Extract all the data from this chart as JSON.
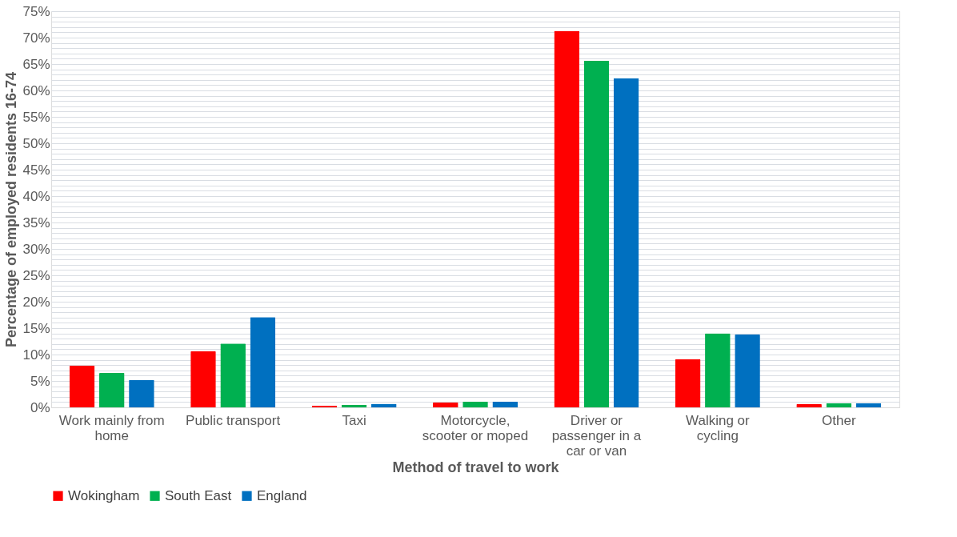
{
  "chart_data": {
    "type": "bar",
    "xlabel": "Method of travel to work",
    "ylabel": "Percentage of employed residents 16-74",
    "categories": [
      "Work mainly from home",
      "Public transport",
      "Taxi",
      "Motorcycle, scooter or moped",
      "Driver or passenger in a car or van",
      "Walking or cycling",
      "Other"
    ],
    "series": [
      {
        "name": "Wokingham",
        "color": "#ff0000",
        "values": [
          7.9,
          10.6,
          0.3,
          0.9,
          71.3,
          9.1,
          0.6
        ]
      },
      {
        "name": "South East",
        "color": "#00b050",
        "values": [
          6.5,
          12.1,
          0.5,
          1.1,
          65.6,
          14.0,
          0.8
        ]
      },
      {
        "name": "England",
        "color": "#0070c0",
        "values": [
          5.2,
          17.1,
          0.7,
          1.1,
          62.3,
          13.8,
          0.8
        ]
      }
    ],
    "ylim": [
      0,
      75
    ],
    "yticks": [
      {
        "value": 0,
        "label": "0%"
      },
      {
        "value": 1,
        "label": null
      },
      {
        "value": 2,
        "label": null
      },
      {
        "value": 3,
        "label": null
      },
      {
        "value": 4,
        "label": null
      },
      {
        "value": 5,
        "label": "5%"
      },
      {
        "value": 6,
        "label": null
      },
      {
        "value": 7,
        "label": null
      },
      {
        "value": 8,
        "label": null
      },
      {
        "value": 9,
        "label": null
      },
      {
        "value": 10,
        "label": "10%"
      },
      {
        "value": 11,
        "label": null
      },
      {
        "value": 12,
        "label": null
      },
      {
        "value": 13,
        "label": null
      },
      {
        "value": 14,
        "label": null
      },
      {
        "value": 15,
        "label": "15%"
      },
      {
        "value": 16,
        "label": null
      },
      {
        "value": 17,
        "label": null
      },
      {
        "value": 18,
        "label": null
      },
      {
        "value": 19,
        "label": null
      },
      {
        "value": 20,
        "label": "20%"
      },
      {
        "value": 21,
        "label": null
      },
      {
        "value": 22,
        "label": null
      },
      {
        "value": 23,
        "label": null
      },
      {
        "value": 24,
        "label": null
      },
      {
        "value": 25,
        "label": "25%"
      },
      {
        "value": 26,
        "label": null
      },
      {
        "value": 27,
        "label": null
      },
      {
        "value": 28,
        "label": null
      },
      {
        "value": 29,
        "label": null
      },
      {
        "value": 30,
        "label": "30%"
      },
      {
        "value": 31,
        "label": null
      },
      {
        "value": 32,
        "label": null
      },
      {
        "value": 33,
        "label": null
      },
      {
        "value": 34,
        "label": null
      },
      {
        "value": 35,
        "label": "35%"
      },
      {
        "value": 36,
        "label": null
      },
      {
        "value": 37,
        "label": null
      },
      {
        "value": 38,
        "label": null
      },
      {
        "value": 39,
        "label": null
      },
      {
        "value": 40,
        "label": "40%"
      },
      {
        "value": 41,
        "label": null
      },
      {
        "value": 42,
        "label": null
      },
      {
        "value": 43,
        "label": null
      },
      {
        "value": 44,
        "label": null
      },
      {
        "value": 45,
        "label": "45%"
      },
      {
        "value": 46,
        "label": null
      },
      {
        "value": 47,
        "label": null
      },
      {
        "value": 48,
        "label": null
      },
      {
        "value": 49,
        "label": null
      },
      {
        "value": 50,
        "label": "50%"
      },
      {
        "value": 51,
        "label": null
      },
      {
        "value": 52,
        "label": null
      },
      {
        "value": 53,
        "label": null
      },
      {
        "value": 54,
        "label": null
      },
      {
        "value": 55,
        "label": "55%"
      },
      {
        "value": 56,
        "label": null
      },
      {
        "value": 57,
        "label": null
      },
      {
        "value": 58,
        "label": null
      },
      {
        "value": 59,
        "label": null
      },
      {
        "value": 60,
        "label": "60%"
      },
      {
        "value": 61,
        "label": null
      },
      {
        "value": 62,
        "label": null
      },
      {
        "value": 63,
        "label": null
      },
      {
        "value": 64,
        "label": null
      },
      {
        "value": 65,
        "label": "65%"
      },
      {
        "value": 66,
        "label": null
      },
      {
        "value": 67,
        "label": null
      },
      {
        "value": 68,
        "label": null
      },
      {
        "value": 69,
        "label": null
      },
      {
        "value": 70,
        "label": "70%"
      },
      {
        "value": 71,
        "label": null
      },
      {
        "value": 72,
        "label": null
      },
      {
        "value": 73,
        "label": null
      },
      {
        "value": 74,
        "label": null
      },
      {
        "value": 75,
        "label": "75%"
      }
    ],
    "grid": "y",
    "legend": "bottom"
  }
}
